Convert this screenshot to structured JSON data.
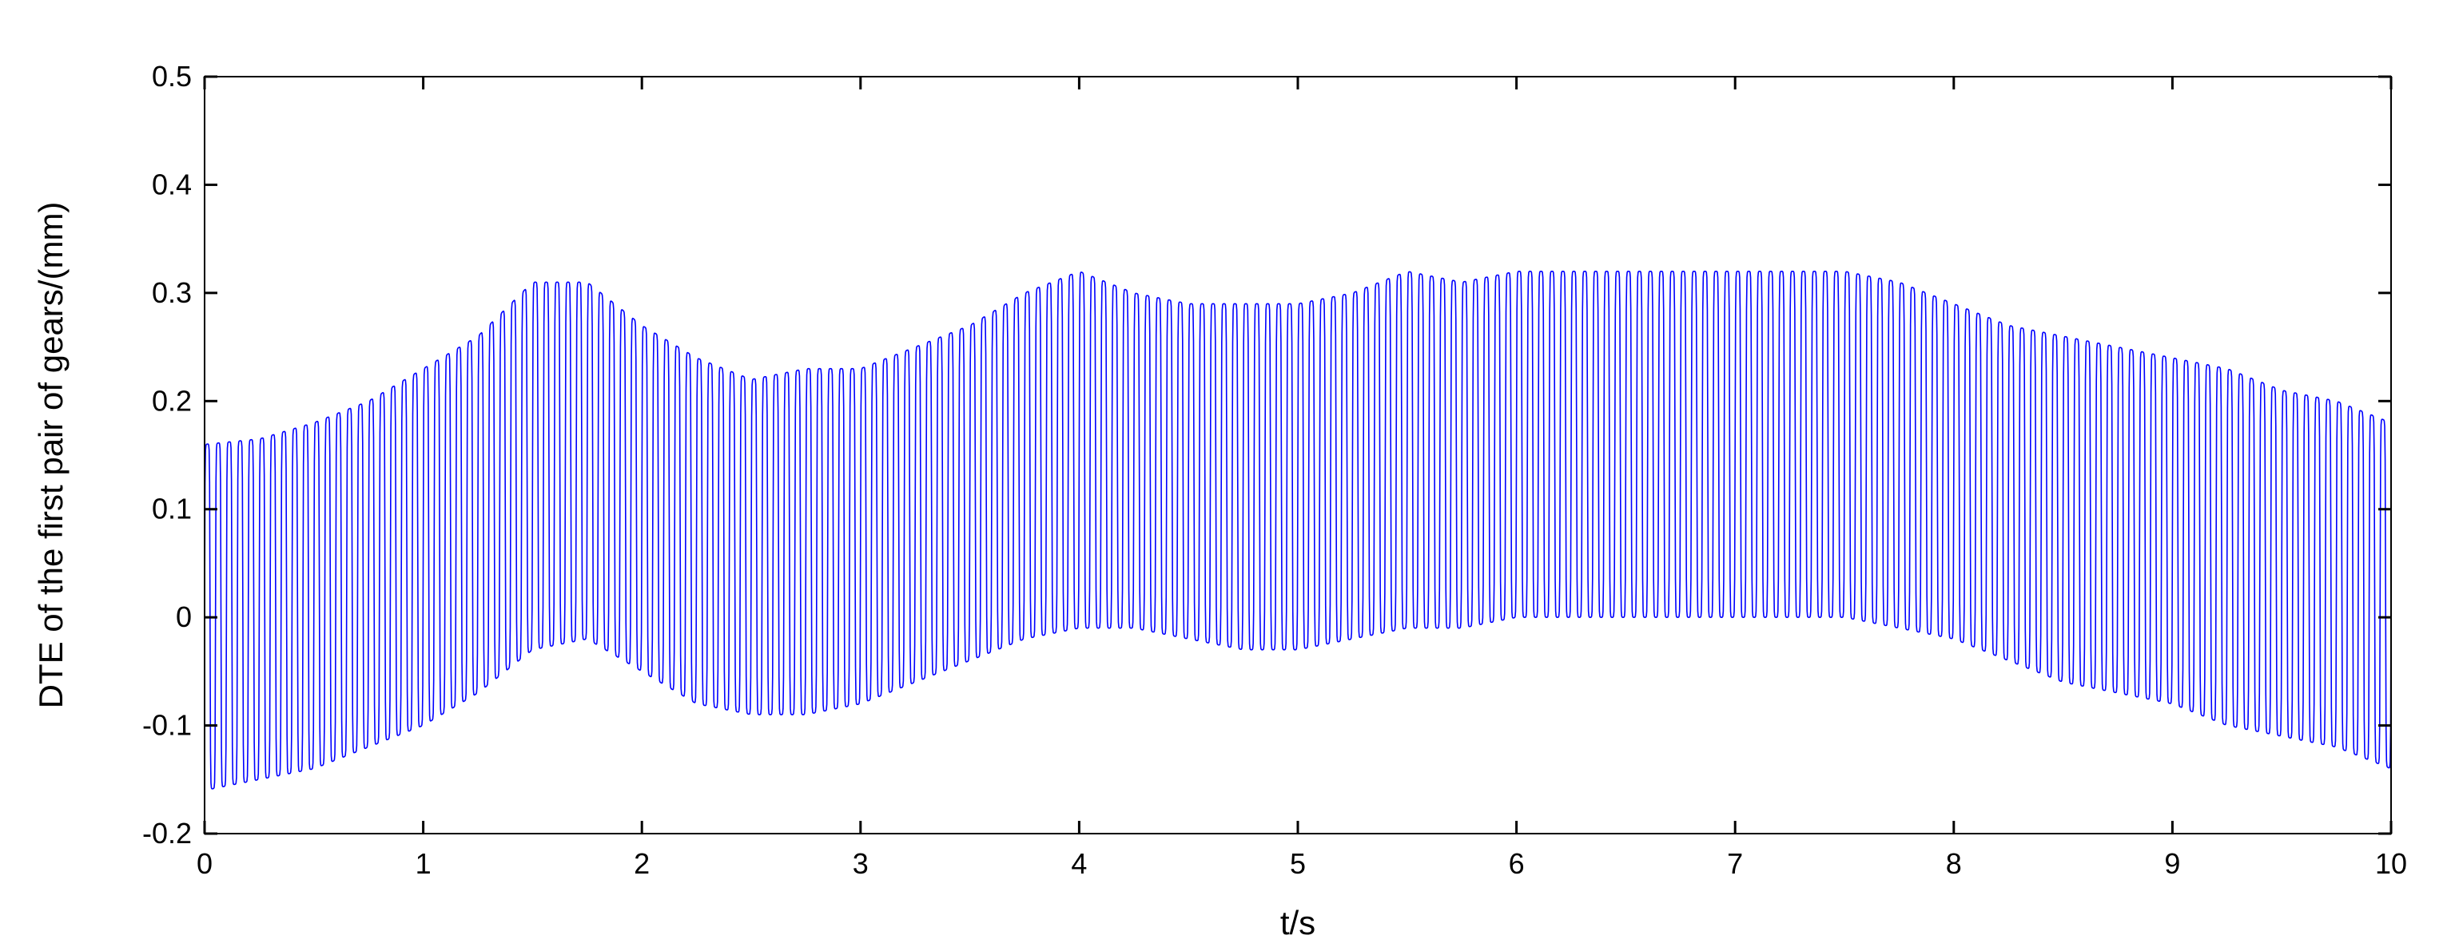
{
  "chart_data": {
    "type": "line",
    "title": "",
    "xlabel": "t/s",
    "ylabel": "DTE of the first pair of gears/(mm)",
    "xlim": [
      0,
      10
    ],
    "ylim": [
      -0.2,
      0.5
    ],
    "xticks": [
      0,
      1,
      2,
      3,
      4,
      5,
      6,
      7,
      8,
      9,
      10
    ],
    "xtick_labels": [
      "0",
      "1",
      "2",
      "3",
      "4",
      "5",
      "6",
      "7",
      "8",
      "9",
      "10"
    ],
    "yticks": [
      -0.2,
      -0.1,
      0,
      0.1,
      0.2,
      0.3,
      0.4,
      0.5
    ],
    "ytick_labels": [
      "-0.2",
      "-0.1",
      "0",
      "0.1",
      "0.2",
      "0.3",
      "0.4",
      "0.5"
    ],
    "grid": false,
    "legend": "none",
    "line_color": "#0000ff",
    "oscillation_cycles_per_second": 20,
    "series": [
      {
        "x": [
          0,
          0.25,
          0.5,
          0.75,
          1.0,
          1.25,
          1.5,
          1.75,
          2.0,
          2.25,
          2.5,
          2.75,
          3.0,
          3.25,
          3.5,
          3.75,
          4.0,
          4.25,
          4.5,
          4.75,
          5.0,
          5.25,
          5.5,
          5.75,
          6.0,
          6.25,
          6.5,
          6.75,
          7.0,
          7.25,
          7.5,
          7.75,
          8.0,
          8.25,
          8.5,
          8.75,
          9.0,
          9.25,
          9.5,
          9.75,
          10.0
        ],
        "upper": [
          0.16,
          0.165,
          0.18,
          0.2,
          0.23,
          0.26,
          0.31,
          0.31,
          0.27,
          0.24,
          0.22,
          0.23,
          0.23,
          0.25,
          0.27,
          0.3,
          0.32,
          0.3,
          0.29,
          0.29,
          0.29,
          0.3,
          0.32,
          0.31,
          0.32,
          0.32,
          0.32,
          0.32,
          0.32,
          0.32,
          0.32,
          0.31,
          0.29,
          0.27,
          0.26,
          0.25,
          0.24,
          0.23,
          0.21,
          0.2,
          0.18
        ],
        "lower": [
          -0.16,
          -0.15,
          -0.14,
          -0.12,
          -0.1,
          -0.07,
          -0.03,
          -0.02,
          -0.05,
          -0.08,
          -0.09,
          -0.09,
          -0.08,
          -0.06,
          -0.04,
          -0.02,
          -0.01,
          -0.01,
          -0.02,
          -0.03,
          -0.03,
          -0.02,
          -0.01,
          -0.01,
          0.0,
          0.0,
          0.0,
          0.0,
          0.0,
          0.0,
          0.0,
          -0.01,
          -0.02,
          -0.04,
          -0.06,
          -0.07,
          -0.08,
          -0.1,
          -0.11,
          -0.12,
          -0.14
        ]
      }
    ]
  }
}
